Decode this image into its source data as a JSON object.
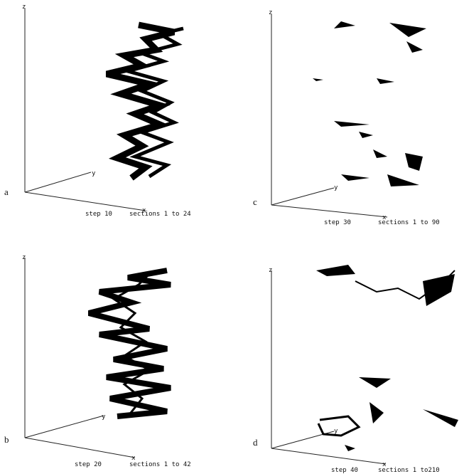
{
  "panels": [
    {
      "letter": "a",
      "axis_z": "z",
      "axis_y": "y",
      "axis_x": "x",
      "step": "step 10",
      "sections": "sections 1 to 24"
    },
    {
      "letter": "b",
      "axis_z": "z",
      "axis_y": "y",
      "axis_x": "x",
      "step": "step 20",
      "sections": "sections 1 to 42"
    },
    {
      "letter": "c",
      "axis_z": "z",
      "axis_y": "y",
      "axis_x": "x",
      "step": "step 30",
      "sections": "sections 1 to 90"
    },
    {
      "letter": "d",
      "axis_z": "z",
      "axis_y": "y",
      "axis_x": "x",
      "step": "step 40",
      "sections": "sections 1 to210"
    }
  ]
}
